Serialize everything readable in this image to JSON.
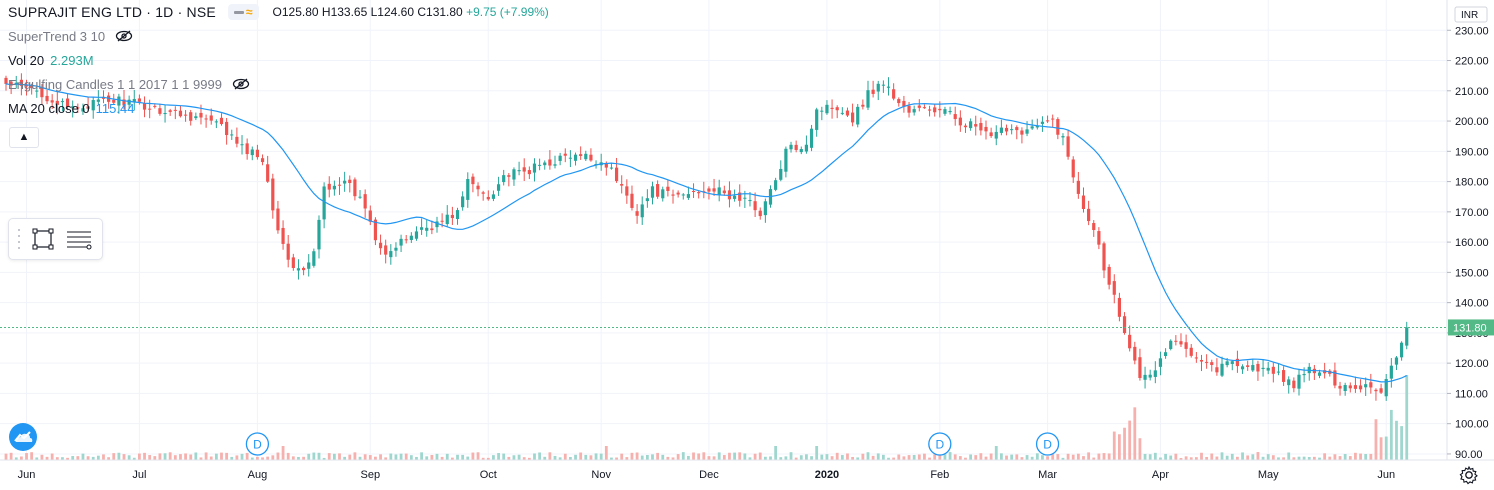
{
  "header": {
    "symbol": "SUPRAJIT ENG LTD · 1D · NSE",
    "open": "O125.80",
    "high": "H133.65",
    "low": "L124.60",
    "close": "C131.80",
    "change": "+9.75 (+7.99%)"
  },
  "indicators": {
    "supertrend": "SuperTrend 3 10",
    "vol_name": "Vol 20",
    "vol_value": "2.293M",
    "engulfing": "Engulfing Candles 1 1 2017 1 1 9999",
    "ma_name": "MA 20 close 0",
    "ma_value": "115.44"
  },
  "axis": {
    "currency": "INR",
    "current_price_label": "131.80"
  },
  "markers": [
    "D",
    "D",
    "D"
  ],
  "colors": {
    "up": "#26a69a",
    "down": "#ef5350",
    "ma": "#2196f3",
    "grid": "#f0f3fa",
    "price_tag": "#53b987",
    "vol_up": "#9fd7cf",
    "vol_down": "#f6b1ae"
  },
  "icons": {
    "eye": "eye-crossed-icon",
    "collapse": "chevron-up-icon",
    "rect_tool": "rectangle-icon",
    "fib_tool": "lines-icon",
    "logo": "tradingview-cloud-icon",
    "settings": "gear-icon"
  },
  "chart_data": {
    "type": "candlestick",
    "title": "SUPRAJIT ENG LTD · 1D · NSE",
    "ylim": [
      88,
      240
    ],
    "yticks": [
      90,
      100,
      110,
      120,
      130,
      140,
      150,
      160,
      170,
      180,
      190,
      200,
      210,
      220,
      230
    ],
    "ytick_labels": [
      "90.00",
      "100.00",
      "110.00",
      "120.00",
      "130.00",
      "140.00",
      "150.00",
      "160.00",
      "170.00",
      "180.00",
      "190.00",
      "200.00",
      "210.00",
      "220.00",
      "230.00"
    ],
    "x_labels": [
      "Jun",
      "Jul",
      "Aug",
      "Sep",
      "Oct",
      "Nov",
      "Dec",
      "2020",
      "Feb",
      "Mar",
      "Apr",
      "May",
      "Jun"
    ],
    "x_label_bar_index": [
      4,
      26,
      49,
      71,
      94,
      116,
      137,
      160,
      182,
      203,
      225,
      246,
      269
    ],
    "close_anchors": [
      [
        0,
        212
      ],
      [
        6,
        210
      ],
      [
        12,
        204
      ],
      [
        18,
        206
      ],
      [
        22,
        207
      ],
      [
        27,
        205
      ],
      [
        32,
        203
      ],
      [
        38,
        201
      ],
      [
        42,
        198
      ],
      [
        46,
        191
      ],
      [
        50,
        188
      ],
      [
        52,
        172
      ],
      [
        54,
        158
      ],
      [
        56,
        152
      ],
      [
        58,
        150
      ],
      [
        60,
        156
      ],
      [
        62,
        178
      ],
      [
        65,
        180
      ],
      [
        67,
        178
      ],
      [
        70,
        172
      ],
      [
        72,
        162
      ],
      [
        74,
        157
      ],
      [
        76,
        158
      ],
      [
        80,
        164
      ],
      [
        84,
        166
      ],
      [
        88,
        170
      ],
      [
        90,
        180
      ],
      [
        94,
        175
      ],
      [
        97,
        182
      ],
      [
        101,
        183
      ],
      [
        105,
        186
      ],
      [
        109,
        188
      ],
      [
        113,
        188
      ],
      [
        117,
        186
      ],
      [
        120,
        178
      ],
      [
        123,
        170
      ],
      [
        126,
        177
      ],
      [
        130,
        175
      ],
      [
        133,
        176
      ],
      [
        137,
        178
      ],
      [
        141,
        175
      ],
      [
        144,
        174
      ],
      [
        147,
        170
      ],
      [
        150,
        180
      ],
      [
        152,
        190
      ],
      [
        156,
        193
      ],
      [
        158,
        204
      ],
      [
        162,
        205
      ],
      [
        165,
        201
      ],
      [
        168,
        209
      ],
      [
        171,
        213
      ],
      [
        173,
        208
      ],
      [
        176,
        203
      ],
      [
        179,
        204
      ],
      [
        183,
        203
      ],
      [
        186,
        200
      ],
      [
        189,
        198
      ],
      [
        192,
        194
      ],
      [
        195,
        198
      ],
      [
        198,
        197
      ],
      [
        201,
        198
      ],
      [
        204,
        200
      ],
      [
        206,
        194
      ],
      [
        208,
        182
      ],
      [
        210,
        172
      ],
      [
        212,
        165
      ],
      [
        214,
        152
      ],
      [
        216,
        142
      ],
      [
        218,
        131
      ],
      [
        220,
        122
      ],
      [
        221,
        114
      ],
      [
        224,
        118
      ],
      [
        227,
        127
      ],
      [
        230,
        125
      ],
      [
        233,
        122
      ],
      [
        236,
        118
      ],
      [
        239,
        121
      ],
      [
        242,
        119
      ],
      [
        245,
        118
      ],
      [
        248,
        116
      ],
      [
        251,
        113
      ],
      [
        254,
        118
      ],
      [
        257,
        116
      ],
      [
        260,
        113
      ],
      [
        263,
        112
      ],
      [
        266,
        113
      ],
      [
        268,
        110
      ],
      [
        270,
        120
      ],
      [
        271,
        122
      ],
      [
        273,
        131.8
      ]
    ],
    "current_price": 131.8,
    "dividend_marker_bar_index": [
      49,
      182,
      203
    ]
  }
}
